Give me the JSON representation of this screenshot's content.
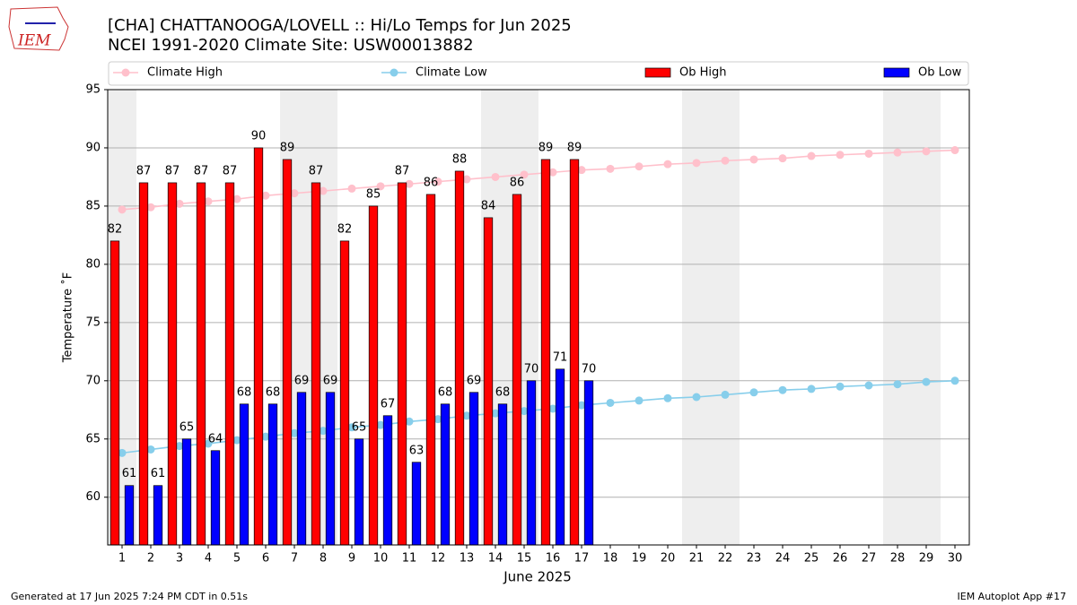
{
  "chart_data": {
    "type": "bar",
    "title": "[CHA] CHATTANOOGA/LOVELL :: Hi/Lo Temps for Jun 2025",
    "subtitle": "NCEI 1991-2020 Climate Site: USW00013882",
    "logo_text": "IEM",
    "x_label": "June 2025",
    "y_label": "Temperature ˚F",
    "footer_left": "Generated at 17 Jun 2025 7:24 PM CDT in 0.51s",
    "footer_right": "IEM Autoplot App #17",
    "x": [
      1,
      2,
      3,
      4,
      5,
      6,
      7,
      8,
      9,
      10,
      11,
      12,
      13,
      14,
      15,
      16,
      17,
      18,
      19,
      20,
      21,
      22,
      23,
      24,
      25,
      26,
      27,
      28,
      29,
      30
    ],
    "xlim": [
      0.5,
      30.5
    ],
    "xticks": [
      1,
      2,
      3,
      4,
      5,
      6,
      7,
      8,
      9,
      10,
      11,
      12,
      13,
      14,
      15,
      16,
      17,
      18,
      19,
      20,
      21,
      22,
      23,
      24,
      25,
      26,
      27,
      28,
      29,
      30
    ],
    "ylim": [
      55.9,
      95
    ],
    "yticks": [
      60,
      65,
      70,
      75,
      80,
      85,
      90,
      95
    ],
    "grid": true,
    "shaded_days": [
      1,
      7,
      8,
      14,
      15,
      21,
      22,
      28,
      29
    ],
    "shade_color": "#eeeeee",
    "series": [
      {
        "name": "Climate High",
        "type": "line",
        "color": "#ffc0cb",
        "values": [
          84.7,
          84.9,
          85.2,
          85.4,
          85.6,
          85.9,
          86.1,
          86.3,
          86.5,
          86.7,
          86.9,
          87.1,
          87.3,
          87.5,
          87.7,
          87.9,
          88.1,
          88.2,
          88.4,
          88.6,
          88.7,
          88.9,
          89.0,
          89.1,
          89.3,
          89.4,
          89.5,
          89.6,
          89.7,
          89.8
        ]
      },
      {
        "name": "Climate Low",
        "type": "line",
        "color": "#87ceeb",
        "values": [
          63.8,
          64.1,
          64.4,
          64.6,
          64.9,
          65.2,
          65.5,
          65.7,
          66.0,
          66.2,
          66.5,
          66.7,
          67.0,
          67.2,
          67.4,
          67.6,
          67.9,
          68.1,
          68.3,
          68.5,
          68.6,
          68.8,
          69.0,
          69.2,
          69.3,
          69.5,
          69.6,
          69.7,
          69.9,
          70.0
        ]
      },
      {
        "name": "Ob High",
        "type": "bar",
        "color": "#ff0000",
        "values": [
          82,
          87,
          87,
          87,
          87,
          90,
          89,
          87,
          82,
          85,
          87,
          86,
          88,
          84,
          86,
          89,
          89,
          null,
          null,
          null,
          null,
          null,
          null,
          null,
          null,
          null,
          null,
          null,
          null,
          null
        ]
      },
      {
        "name": "Ob Low",
        "type": "bar",
        "color": "#0000ff",
        "values": [
          61,
          61,
          65,
          64,
          68,
          68,
          69,
          69,
          65,
          67,
          63,
          68,
          69,
          68,
          70,
          71,
          70,
          null,
          null,
          null,
          null,
          null,
          null,
          null,
          null,
          null,
          null,
          null,
          null,
          null
        ]
      }
    ]
  }
}
